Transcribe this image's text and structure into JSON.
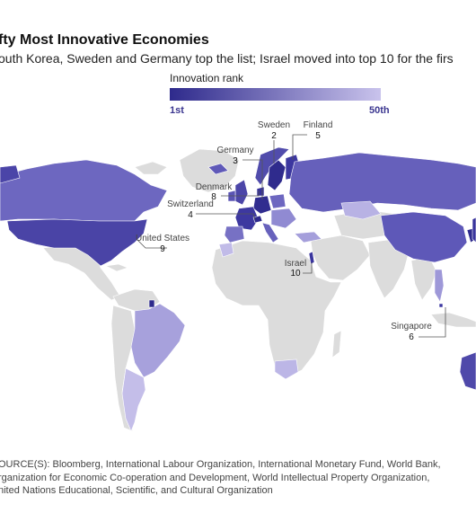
{
  "header": {
    "title": "fty Most Innovative Economies",
    "subtitle": "outh Korea, Sweden and Germany top the list; Israel moved into top 10 for the firs"
  },
  "legend": {
    "title": "Innovation rank",
    "min_label": "1st",
    "max_label": "50th",
    "color_top": "#2e2a8c",
    "color_bottom": "#c9c3ec",
    "color_not_ranked": "#dcdcdc"
  },
  "callouts": [
    {
      "id": "sweden",
      "name": "Sweden",
      "rank": "2"
    },
    {
      "id": "finland",
      "name": "Finland",
      "rank": "5"
    },
    {
      "id": "germany",
      "name": "Germany",
      "rank": "3"
    },
    {
      "id": "denmark",
      "name": "Denmark",
      "rank": "8"
    },
    {
      "id": "switzerland",
      "name": "Switzerland",
      "rank": "4"
    },
    {
      "id": "united-states",
      "name": "United States",
      "rank": "9"
    },
    {
      "id": "israel",
      "name": "Israel",
      "rank": "10"
    },
    {
      "id": "singapore",
      "name": "Singapore",
      "rank": "6"
    }
  ],
  "source": {
    "line1": "OURCE(S): Bloomberg, International Labour Organization, International Monetary Fund, World Bank,",
    "line2": "rganization for Economic Co-operation and Development, World Intellectual Property Organization,",
    "line3": "nited Nations Educational, Scientific, and Cultural Organization"
  }
}
